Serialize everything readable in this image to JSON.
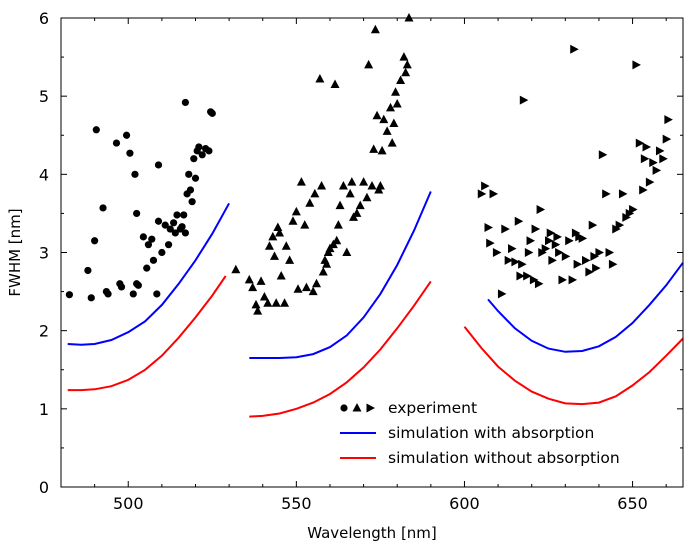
{
  "chart_data": {
    "type": "scatter",
    "title": "",
    "xlabel": "Wavelength [nm]",
    "ylabel": "FWHM [nm]",
    "xlim": [
      480,
      665
    ],
    "ylim": [
      0,
      6
    ],
    "xticks": [
      500,
      550,
      600,
      650
    ],
    "yticks": [
      0,
      1,
      2,
      3,
      4,
      5,
      6
    ],
    "grid": false,
    "legend_position": "bottom-right",
    "legend": [
      {
        "label": "experiment",
        "kind": "markers"
      },
      {
        "label": "simulation with absorption",
        "kind": "line",
        "color": "#0000ff"
      },
      {
        "label": "simulation without absorption",
        "kind": "line",
        "color": "#ff0000"
      }
    ],
    "series": [
      {
        "marker": "circle",
        "color": "#000000",
        "points": [
          [
            482.5,
            2.46
          ],
          [
            488,
            2.77
          ],
          [
            489,
            2.42
          ],
          [
            490,
            3.15
          ],
          [
            490.5,
            4.57
          ],
          [
            492.5,
            3.57
          ],
          [
            493.5,
            2.5
          ],
          [
            494,
            2.47
          ],
          [
            496.5,
            4.4
          ],
          [
            497.5,
            2.6
          ],
          [
            498,
            2.56
          ],
          [
            499.5,
            4.5
          ],
          [
            500.5,
            4.27
          ],
          [
            501.5,
            2.47
          ],
          [
            502,
            4.0
          ],
          [
            502.5,
            2.6
          ],
          [
            502.5,
            3.5
          ],
          [
            503,
            2.58
          ],
          [
            504.5,
            3.2
          ],
          [
            505.5,
            2.8
          ],
          [
            506,
            3.1
          ],
          [
            507,
            3.17
          ],
          [
            507.5,
            2.9
          ],
          [
            508.5,
            2.47
          ],
          [
            509,
            3.4
          ],
          [
            509,
            4.12
          ],
          [
            510,
            3.0
          ],
          [
            511,
            3.35
          ],
          [
            512,
            3.1
          ],
          [
            512.5,
            3.3
          ],
          [
            513.5,
            3.38
          ],
          [
            514,
            3.25
          ],
          [
            514.5,
            3.48
          ],
          [
            515.5,
            3.3
          ],
          [
            516,
            3.33
          ],
          [
            516.5,
            3.48
          ],
          [
            517,
            4.92
          ],
          [
            517,
            3.25
          ],
          [
            517.5,
            3.75
          ],
          [
            518,
            4.0
          ],
          [
            518.5,
            3.8
          ],
          [
            519,
            3.65
          ],
          [
            519.5,
            4.2
          ],
          [
            520,
            3.95
          ],
          [
            520.5,
            4.3
          ],
          [
            521,
            4.35
          ],
          [
            522,
            4.25
          ],
          [
            523,
            4.33
          ],
          [
            524,
            4.3
          ],
          [
            524.5,
            4.8
          ],
          [
            525,
            4.78
          ]
        ]
      },
      {
        "marker": "triangle-up",
        "color": "#000000",
        "points": [
          [
            532,
            2.78
          ],
          [
            536,
            2.65
          ],
          [
            537,
            2.55
          ],
          [
            538,
            2.33
          ],
          [
            538.5,
            2.25
          ],
          [
            539.5,
            2.63
          ],
          [
            540.5,
            2.43
          ],
          [
            541.5,
            2.35
          ],
          [
            542,
            3.08
          ],
          [
            543,
            3.2
          ],
          [
            543.5,
            2.95
          ],
          [
            544,
            2.35
          ],
          [
            544.5,
            3.32
          ],
          [
            545,
            3.25
          ],
          [
            545.5,
            2.7
          ],
          [
            546.5,
            2.35
          ],
          [
            547,
            3.08
          ],
          [
            548,
            2.9
          ],
          [
            549,
            3.4
          ],
          [
            550,
            3.52
          ],
          [
            550.5,
            2.53
          ],
          [
            551.5,
            3.9
          ],
          [
            552.5,
            3.35
          ],
          [
            553,
            2.55
          ],
          [
            554,
            3.63
          ],
          [
            555,
            2.5
          ],
          [
            555.5,
            3.75
          ],
          [
            556,
            2.6
          ],
          [
            557,
            5.22
          ],
          [
            557.5,
            3.85
          ],
          [
            558,
            2.75
          ],
          [
            558.5,
            2.9
          ],
          [
            559,
            2.85
          ],
          [
            559.5,
            3.0
          ],
          [
            560,
            3.05
          ],
          [
            561,
            3.1
          ],
          [
            561.5,
            5.15
          ],
          [
            562,
            3.15
          ],
          [
            562.5,
            3.35
          ],
          [
            563,
            3.6
          ],
          [
            564,
            3.85
          ],
          [
            565,
            3.0
          ],
          [
            566,
            3.75
          ],
          [
            566.5,
            3.9
          ],
          [
            567,
            3.45
          ],
          [
            568,
            3.5
          ],
          [
            569,
            3.6
          ],
          [
            570,
            3.9
          ],
          [
            571,
            3.7
          ],
          [
            571.5,
            5.4
          ],
          [
            572.5,
            3.85
          ],
          [
            573,
            4.32
          ],
          [
            573.5,
            5.85
          ],
          [
            574,
            4.75
          ],
          [
            574.5,
            3.8
          ],
          [
            575,
            3.85
          ],
          [
            575.5,
            4.3
          ],
          [
            576,
            4.7
          ],
          [
            577,
            4.55
          ],
          [
            578,
            4.85
          ],
          [
            578.5,
            4.4
          ],
          [
            579,
            4.65
          ],
          [
            579.5,
            5.05
          ],
          [
            580,
            4.9
          ],
          [
            581,
            5.2
          ],
          [
            582,
            5.5
          ],
          [
            582.5,
            5.3
          ],
          [
            583,
            5.4
          ],
          [
            583.5,
            6.0
          ]
        ]
      },
      {
        "marker": "triangle-right",
        "color": "#000000",
        "points": [
          [
            605,
            3.75
          ],
          [
            606,
            3.85
          ],
          [
            607,
            3.32
          ],
          [
            607.5,
            3.12
          ],
          [
            608.5,
            3.75
          ],
          [
            609.5,
            3.0
          ],
          [
            611,
            2.47
          ],
          [
            612,
            3.3
          ],
          [
            613,
            2.9
          ],
          [
            614,
            3.05
          ],
          [
            615,
            2.88
          ],
          [
            616,
            3.4
          ],
          [
            616.5,
            2.7
          ],
          [
            617,
            2.85
          ],
          [
            617.5,
            4.95
          ],
          [
            618.5,
            2.7
          ],
          [
            619,
            3.0
          ],
          [
            619.5,
            3.15
          ],
          [
            620.5,
            2.65
          ],
          [
            621,
            3.3
          ],
          [
            622,
            2.6
          ],
          [
            622.5,
            3.55
          ],
          [
            623,
            3.0
          ],
          [
            624,
            3.05
          ],
          [
            625,
            3.15
          ],
          [
            625.5,
            3.25
          ],
          [
            626,
            2.9
          ],
          [
            627,
            3.1
          ],
          [
            627.5,
            3.2
          ],
          [
            628,
            3.0
          ],
          [
            629,
            2.65
          ],
          [
            630,
            2.95
          ],
          [
            631,
            3.15
          ],
          [
            632,
            2.65
          ],
          [
            632.5,
            5.6
          ],
          [
            633,
            3.25
          ],
          [
            633.5,
            2.85
          ],
          [
            634,
            3.2
          ],
          [
            635,
            3.18
          ],
          [
            636,
            2.9
          ],
          [
            637,
            2.75
          ],
          [
            638,
            3.35
          ],
          [
            638.5,
            2.95
          ],
          [
            639,
            2.8
          ],
          [
            640,
            3.0
          ],
          [
            641,
            4.25
          ],
          [
            642,
            3.75
          ],
          [
            643,
            3.0
          ],
          [
            644,
            2.85
          ],
          [
            645,
            3.3
          ],
          [
            646,
            3.35
          ],
          [
            647,
            3.75
          ],
          [
            648,
            3.45
          ],
          [
            649,
            3.5
          ],
          [
            650,
            3.55
          ],
          [
            651,
            5.4
          ],
          [
            652,
            4.4
          ],
          [
            653,
            3.8
          ],
          [
            653.5,
            4.2
          ],
          [
            654,
            4.35
          ],
          [
            655,
            3.9
          ],
          [
            656,
            4.15
          ],
          [
            657,
            4.05
          ],
          [
            658,
            4.3
          ],
          [
            659,
            4.2
          ],
          [
            660,
            4.45
          ],
          [
            660.5,
            4.7
          ]
        ]
      },
      {
        "name": "simulation with absorption",
        "kind": "line",
        "color": "#0000ff",
        "segments": [
          [
            [
              482,
              1.83
            ],
            [
              486,
              1.82
            ],
            [
              490,
              1.83
            ],
            [
              495,
              1.88
            ],
            [
              500,
              1.98
            ],
            [
              505,
              2.12
            ],
            [
              510,
              2.33
            ],
            [
              515,
              2.6
            ],
            [
              520,
              2.9
            ],
            [
              525,
              3.24
            ],
            [
              530,
              3.63
            ]
          ],
          [
            [
              536,
              1.65
            ],
            [
              540,
              1.65
            ],
            [
              545,
              1.65
            ],
            [
              550,
              1.66
            ],
            [
              555,
              1.7
            ],
            [
              560,
              1.79
            ],
            [
              565,
              1.94
            ],
            [
              570,
              2.17
            ],
            [
              575,
              2.47
            ],
            [
              580,
              2.84
            ],
            [
              585,
              3.28
            ],
            [
              590,
              3.78
            ]
          ],
          [
            [
              607,
              2.4
            ],
            [
              610,
              2.25
            ],
            [
              615,
              2.03
            ],
            [
              620,
              1.87
            ],
            [
              625,
              1.77
            ],
            [
              630,
              1.73
            ],
            [
              635,
              1.74
            ],
            [
              640,
              1.8
            ],
            [
              645,
              1.92
            ],
            [
              650,
              2.1
            ],
            [
              655,
              2.33
            ],
            [
              660,
              2.58
            ],
            [
              665,
              2.87
            ]
          ]
        ]
      },
      {
        "name": "simulation without absorption",
        "kind": "line",
        "color": "#ff0000",
        "segments": [
          [
            [
              482,
              1.24
            ],
            [
              486,
              1.24
            ],
            [
              490,
              1.25
            ],
            [
              495,
              1.29
            ],
            [
              500,
              1.37
            ],
            [
              505,
              1.5
            ],
            [
              510,
              1.68
            ],
            [
              515,
              1.91
            ],
            [
              520,
              2.17
            ],
            [
              525,
              2.45
            ],
            [
              529,
              2.7
            ]
          ],
          [
            [
              536,
              0.9
            ],
            [
              540,
              0.91
            ],
            [
              545,
              0.94
            ],
            [
              550,
              1.0
            ],
            [
              555,
              1.08
            ],
            [
              560,
              1.19
            ],
            [
              565,
              1.34
            ],
            [
              570,
              1.53
            ],
            [
              575,
              1.76
            ],
            [
              580,
              2.03
            ],
            [
              585,
              2.32
            ],
            [
              590,
              2.63
            ]
          ],
          [
            [
              600,
              2.05
            ],
            [
              605,
              1.78
            ],
            [
              610,
              1.54
            ],
            [
              615,
              1.36
            ],
            [
              620,
              1.22
            ],
            [
              625,
              1.13
            ],
            [
              630,
              1.07
            ],
            [
              635,
              1.06
            ],
            [
              640,
              1.08
            ],
            [
              645,
              1.16
            ],
            [
              650,
              1.3
            ],
            [
              655,
              1.47
            ],
            [
              660,
              1.68
            ],
            [
              665,
              1.9
            ]
          ]
        ]
      }
    ]
  }
}
